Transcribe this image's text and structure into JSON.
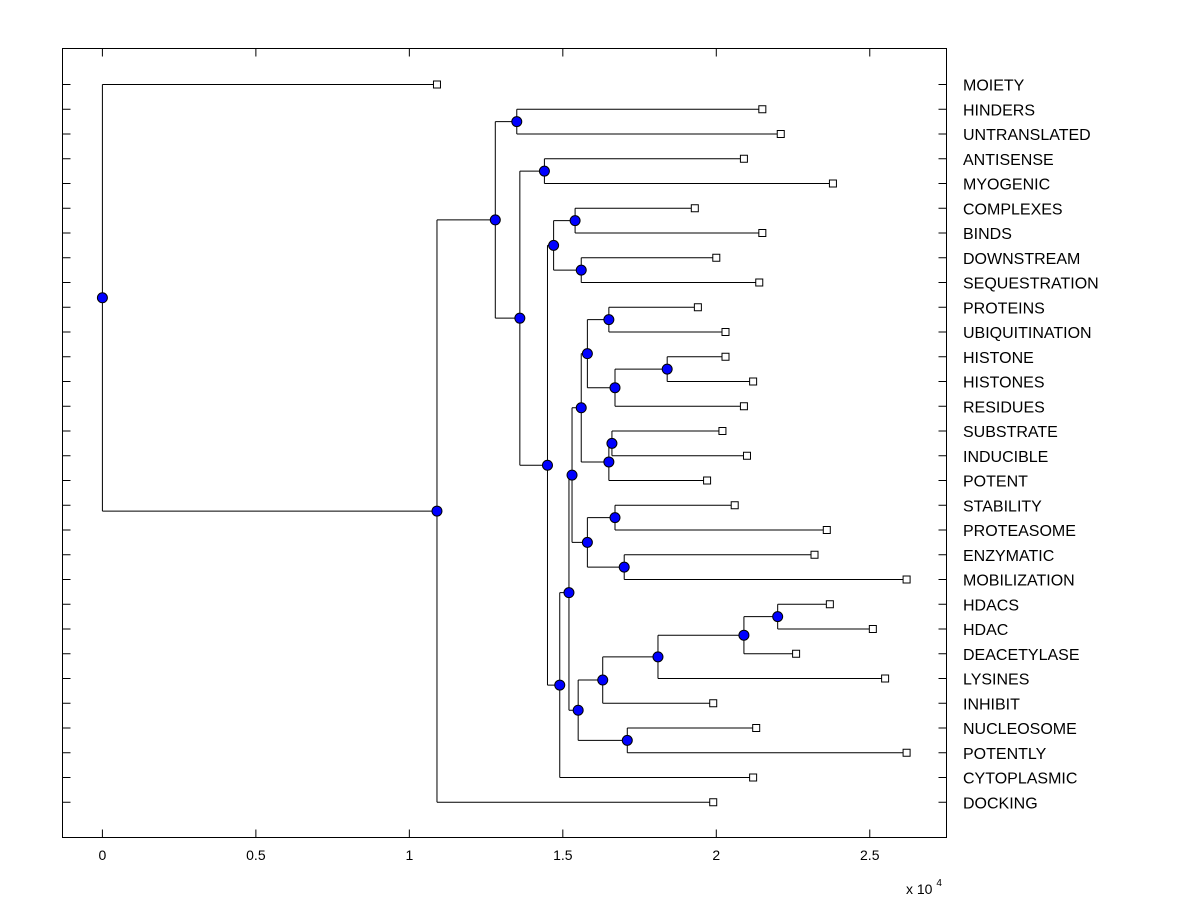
{
  "chart_data": {
    "type": "dendrogram",
    "xlim": [
      -0.13,
      2.75
    ],
    "xticks": [
      0,
      0.5,
      1,
      1.5,
      2,
      2.5
    ],
    "xtick_labels": [
      "0",
      "0.5",
      "1",
      "1.5",
      "2",
      "2.5"
    ],
    "x_exponent_base": "x 10",
    "x_exponent_power": "4",
    "scale_unit": 10000,
    "leaf_marker_color": "#ffffff",
    "node_marker_color": "#0000ff",
    "leaves": [
      {
        "label": "MOIETY",
        "x": 10900
      },
      {
        "label": "HINDERS",
        "x": 21500
      },
      {
        "label": "UNTRANSLATED",
        "x": 22100
      },
      {
        "label": "ANTISENSE",
        "x": 20900
      },
      {
        "label": "MYOGENIC",
        "x": 23800
      },
      {
        "label": "COMPLEXES",
        "x": 19300
      },
      {
        "label": "BINDS",
        "x": 21500
      },
      {
        "label": "DOWNSTREAM",
        "x": 20000
      },
      {
        "label": "SEQUESTRATION",
        "x": 21400
      },
      {
        "label": "PROTEINS",
        "x": 19400
      },
      {
        "label": "UBIQUITINATION",
        "x": 20300
      },
      {
        "label": "HISTONE",
        "x": 20300
      },
      {
        "label": "HISTONES",
        "x": 21200
      },
      {
        "label": "RESIDUES",
        "x": 20900
      },
      {
        "label": "SUBSTRATE",
        "x": 20200
      },
      {
        "label": "INDUCIBLE",
        "x": 21000
      },
      {
        "label": "POTENT",
        "x": 19700
      },
      {
        "label": "STABILITY",
        "x": 20600
      },
      {
        "label": "PROTEASOME",
        "x": 23600
      },
      {
        "label": "ENZYMATIC",
        "x": 23200
      },
      {
        "label": "MOBILIZATION",
        "x": 26200
      },
      {
        "label": "HDACS",
        "x": 23700
      },
      {
        "label": "HDAC",
        "x": 25100
      },
      {
        "label": "DEACETYLASE",
        "x": 22600
      },
      {
        "label": "LYSINES",
        "x": 25500
      },
      {
        "label": "INHIBIT",
        "x": 19900
      },
      {
        "label": "NUCLEOSOME",
        "x": 21300
      },
      {
        "label": "POTENTLY",
        "x": 26200
      },
      {
        "label": "CYTOPLASMIC",
        "x": 21200
      },
      {
        "label": "DOCKING",
        "x": 19900
      }
    ],
    "internal_nodes": [
      {
        "id": "A",
        "x": 0,
        "children": [
          "leaf:MOIETY",
          "B"
        ]
      },
      {
        "id": "B",
        "x": 10900,
        "children": [
          "C",
          "leaf:DOCKING"
        ]
      },
      {
        "id": "C",
        "x": 12800,
        "children": [
          "D",
          "E"
        ]
      },
      {
        "id": "D",
        "x": 13500,
        "children": [
          "leaf:HINDERS",
          "leaf:UNTRANSLATED"
        ]
      },
      {
        "id": "E",
        "x": 13600,
        "children": [
          "F",
          "H"
        ]
      },
      {
        "id": "F",
        "x": 14400,
        "children": [
          "leaf:ANTISENSE",
          "leaf:MYOGENIC"
        ]
      },
      {
        "id": "H",
        "x": 14500,
        "children": [
          "G",
          "N"
        ]
      },
      {
        "id": "G",
        "x": 14700,
        "children": [
          "G1",
          "G2"
        ]
      },
      {
        "id": "G1",
        "x": 15400,
        "children": [
          "leaf:COMPLEXES",
          "leaf:BINDS"
        ]
      },
      {
        "id": "G2",
        "x": 15600,
        "children": [
          "leaf:DOWNSTREAM",
          "leaf:SEQUESTRATION"
        ]
      },
      {
        "id": "N",
        "x": 14900,
        "children": [
          "M",
          "leaf:CYTOPLASMIC"
        ]
      },
      {
        "id": "M",
        "x": 15200,
        "children": [
          "K",
          "S"
        ]
      },
      {
        "id": "K",
        "x": 15300,
        "children": [
          "J",
          "L"
        ]
      },
      {
        "id": "J",
        "x": 15600,
        "children": [
          "J1",
          "J2"
        ]
      },
      {
        "id": "J1",
        "x": 15800,
        "children": [
          "J3",
          "J4"
        ]
      },
      {
        "id": "J3",
        "x": 16500,
        "children": [
          "leaf:PROTEINS",
          "leaf:UBIQUITINATION"
        ]
      },
      {
        "id": "J4",
        "x": 16700,
        "children": [
          "J5",
          "leaf:RESIDUES"
        ]
      },
      {
        "id": "J5",
        "x": 18400,
        "children": [
          "leaf:HISTONE",
          "leaf:HISTONES"
        ]
      },
      {
        "id": "J2",
        "x": 16500,
        "children": [
          "J6",
          "leaf:POTENT"
        ]
      },
      {
        "id": "J6",
        "x": 16600,
        "children": [
          "leaf:SUBSTRATE",
          "leaf:INDUCIBLE"
        ]
      },
      {
        "id": "L",
        "x": 15800,
        "children": [
          "L1",
          "L2"
        ]
      },
      {
        "id": "L1",
        "x": 16700,
        "children": [
          "leaf:STABILITY",
          "leaf:PROTEASOME"
        ]
      },
      {
        "id": "L2",
        "x": 17000,
        "children": [
          "leaf:ENZYMATIC",
          "leaf:MOBILIZATION"
        ]
      },
      {
        "id": "S",
        "x": 15500,
        "children": [
          "R",
          "Q"
        ]
      },
      {
        "id": "R",
        "x": 16300,
        "children": [
          "R1",
          "leaf:INHIBIT"
        ]
      },
      {
        "id": "R1",
        "x": 18100,
        "children": [
          "R2",
          "leaf:LYSINES"
        ]
      },
      {
        "id": "R2",
        "x": 20900,
        "children": [
          "R3",
          "leaf:DEACETYLASE"
        ]
      },
      {
        "id": "R3",
        "x": 22000,
        "children": [
          "leaf:HDACS",
          "leaf:HDAC"
        ]
      },
      {
        "id": "Q",
        "x": 17100,
        "children": [
          "leaf:NUCLEOSOME",
          "leaf:POTENTLY"
        ]
      }
    ]
  }
}
